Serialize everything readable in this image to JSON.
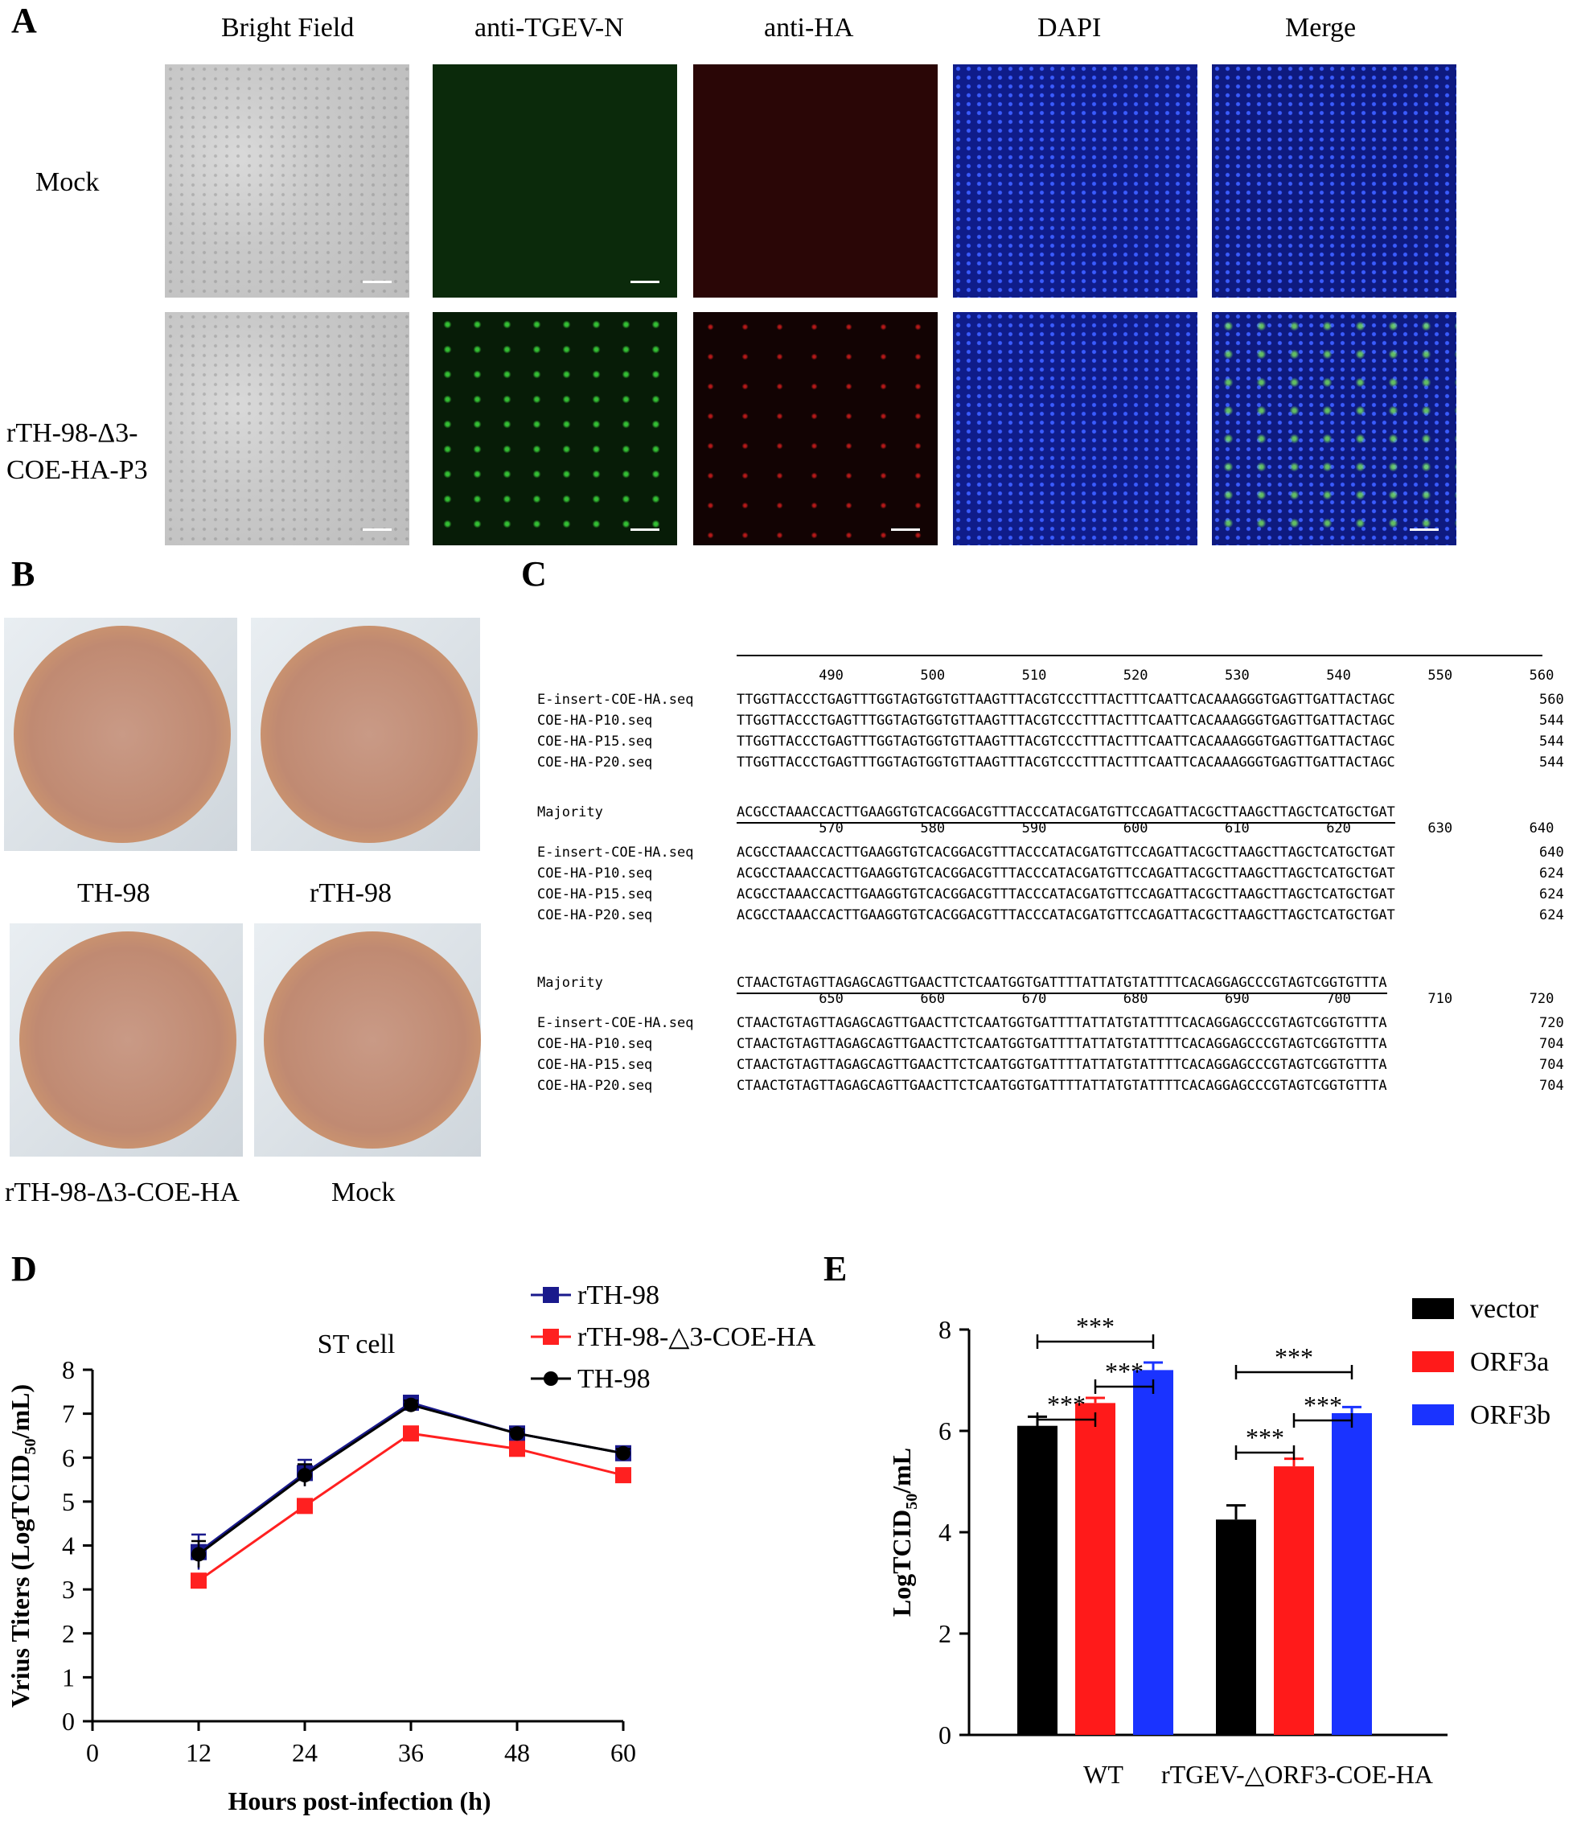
{
  "panel_labels": {
    "a": "A",
    "b": "B",
    "c": "C",
    "d": "D",
    "e": "E"
  },
  "panelA": {
    "columns": [
      "Bright Field",
      "anti-TGEV-N",
      "anti-HA",
      "DAPI",
      "Merge"
    ],
    "rows": [
      "Mock",
      "rTH-98-Δ3-",
      "COE-HA-P3"
    ]
  },
  "panelB": {
    "dishes": [
      "TH-98",
      "rTH-98",
      "rTH-98-Δ3-COE-HA",
      "Mock"
    ]
  },
  "panelC": {
    "blocks": [
      {
        "ticks": [
          "490",
          "500",
          "510",
          "520",
          "530",
          "540",
          "550",
          "560"
        ],
        "rows": [
          {
            "name": "E-insert-COE-HA.seq",
            "seq": "TTGGTTACCCTGAGTTTGGTAGTGGTGTTAAGTTTACGTCCCTTTACTTTCAATTCACAAAGGGTGAGTTGATTACTAGC",
            "end": "560"
          },
          {
            "name": "COE-HA-P10.seq",
            "seq": "TTGGTTACCCTGAGTTTGGTAGTGGTGTTAAGTTTACGTCCCTTTACTTTCAATTCACAAAGGGTGAGTTGATTACTAGC",
            "end": "544"
          },
          {
            "name": "COE-HA-P15.seq",
            "seq": "TTGGTTACCCTGAGTTTGGTAGTGGTGTTAAGTTTACGTCCCTTTACTTTCAATTCACAAAGGGTGAGTTGATTACTAGC",
            "end": "544"
          },
          {
            "name": "COE-HA-P20.seq",
            "seq": "TTGGTTACCCTGAGTTTGGTAGTGGTGTTAAGTTTACGTCCCTTTACTTTCAATTCACAAAGGGTGAGTTGATTACTAGC",
            "end": "544"
          }
        ]
      },
      {
        "majority_label": "Majority",
        "majority": "ACGCCTAAACCACTTGAAGGTGTCACGGACGTTTACCCATACGATGTTCCAGATTACGCTTAAGCTTAGCTCATGCTGAT",
        "ticks": [
          "570",
          "580",
          "590",
          "600",
          "610",
          "620",
          "630",
          "640"
        ],
        "rows": [
          {
            "name": "E-insert-COE-HA.seq",
            "seq": "ACGCCTAAACCACTTGAAGGTGTCACGGACGTTTACCCATACGATGTTCCAGATTACGCTTAAGCTTAGCTCATGCTGAT",
            "end": "640"
          },
          {
            "name": "COE-HA-P10.seq",
            "seq": "ACGCCTAAACCACTTGAAGGTGTCACGGACGTTTACCCATACGATGTTCCAGATTACGCTTAAGCTTAGCTCATGCTGAT",
            "end": "624"
          },
          {
            "name": "COE-HA-P15.seq",
            "seq": "ACGCCTAAACCACTTGAAGGTGTCACGGACGTTTACCCATACGATGTTCCAGATTACGCTTAAGCTTAGCTCATGCTGAT",
            "end": "624"
          },
          {
            "name": "COE-HA-P20.seq",
            "seq": "ACGCCTAAACCACTTGAAGGTGTCACGGACGTTTACCCATACGATGTTCCAGATTACGCTTAAGCTTAGCTCATGCTGAT",
            "end": "624"
          }
        ]
      },
      {
        "majority_label": "Majority",
        "majority": "CTAACTGTAGTTAGAGCAGTTGAACTTCTCAATGGTGATTTTATTATGTATTTTCACAGGAGCCCGTAGTCGGTGTTTA",
        "ticks": [
          "650",
          "660",
          "670",
          "680",
          "690",
          "700",
          "710",
          "720"
        ],
        "rows": [
          {
            "name": "E-insert-COE-HA.seq",
            "seq": "CTAACTGTAGTTAGAGCAGTTGAACTTCTCAATGGTGATTTTATTATGTATTTTCACAGGAGCCCGTAGTCGGTGTTTA",
            "end": "720"
          },
          {
            "name": "COE-HA-P10.seq",
            "seq": "CTAACTGTAGTTAGAGCAGTTGAACTTCTCAATGGTGATTTTATTATGTATTTTCACAGGAGCCCGTAGTCGGTGTTTA",
            "end": "704"
          },
          {
            "name": "COE-HA-P15.seq",
            "seq": "CTAACTGTAGTTAGAGCAGTTGAACTTCTCAATGGTGATTTTATTATGTATTTTCACAGGAGCCCGTAGTCGGTGTTTA",
            "end": "704"
          },
          {
            "name": "COE-HA-P20.seq",
            "seq": "CTAACTGTAGTTAGAGCAGTTGAACTTCTCAATGGTGATTTTATTATGTATTTTCACAGGAGCCCGTAGTCGGTGTTTA",
            "end": "704"
          }
        ]
      }
    ]
  },
  "chart_data": [
    {
      "type": "line",
      "title": "ST cell",
      "xlabel": "Hours post-infection (h)",
      "ylabel": "Vrius Titers (LogTCID50/mL)",
      "ylabel_main": "Vrius Titers (LogTCID",
      "ylabel_sub": "50",
      "ylabel_tail": "/mL)",
      "x": [
        12,
        24,
        36,
        48,
        60
      ],
      "xticks": [
        "0",
        "12",
        "24",
        "36",
        "48",
        "60"
      ],
      "xlim": [
        0,
        60
      ],
      "ylim": [
        0,
        8
      ],
      "yticks": [
        "0",
        "1",
        "2",
        "3",
        "4",
        "5",
        "6",
        "7",
        "8"
      ],
      "legend_position": "top-right",
      "series": [
        {
          "name": "rTH-98",
          "values": [
            3.85,
            5.65,
            7.25,
            6.55,
            6.1
          ],
          "err": [
            0.4,
            0.3,
            0.12,
            0.15,
            0.15
          ],
          "color": "#1a1a8c",
          "marker": "square"
        },
        {
          "name": "rTH-98-△3-COE-HA",
          "values": [
            3.2,
            4.9,
            6.55,
            6.2,
            5.6
          ],
          "err": [
            0.1,
            0.1,
            0.08,
            0.08,
            0.08
          ],
          "color": "#ff2020",
          "marker": "square"
        },
        {
          "name": "TH-98",
          "values": [
            3.8,
            5.6,
            7.2,
            6.55,
            6.1
          ],
          "err": [
            0.3,
            0.25,
            0.1,
            0.1,
            0.1
          ],
          "color": "#000000",
          "marker": "circle"
        }
      ]
    },
    {
      "type": "bar",
      "ylabel": "LogTCID50/mL",
      "ylabel_main": "LogTCID",
      "ylabel_sub": "50",
      "ylabel_tail": "/mL",
      "categories": [
        "WT",
        "rTGEV-△ORF3-COE-HA"
      ],
      "ylim": [
        0,
        8
      ],
      "yticks": [
        "0",
        "2",
        "4",
        "6",
        "8"
      ],
      "legend_position": "right",
      "series": [
        {
          "name": "vector",
          "values": [
            6.1,
            4.25
          ],
          "err": [
            0.18,
            0.28
          ],
          "color": "#000000"
        },
        {
          "name": "ORF3a",
          "values": [
            6.55,
            5.3
          ],
          "err": [
            0.1,
            0.15
          ],
          "color": "#ff1a1a"
        },
        {
          "name": "ORF3b",
          "values": [
            7.2,
            6.35
          ],
          "err": [
            0.15,
            0.12
          ],
          "color": "#1a33ff"
        }
      ],
      "significance": [
        {
          "group": 0,
          "from": 0,
          "to": 1,
          "label": "***",
          "level": 0
        },
        {
          "group": 0,
          "from": 1,
          "to": 2,
          "label": "***",
          "level": 1
        },
        {
          "group": 0,
          "from": 0,
          "to": 2,
          "label": "***",
          "level": 2
        },
        {
          "group": 1,
          "from": 0,
          "to": 1,
          "label": "***",
          "level": 0
        },
        {
          "group": 1,
          "from": 1,
          "to": 2,
          "label": "***",
          "level": 1
        },
        {
          "group": 1,
          "from": 0,
          "to": 2,
          "label": "***",
          "level": 2
        }
      ]
    }
  ]
}
